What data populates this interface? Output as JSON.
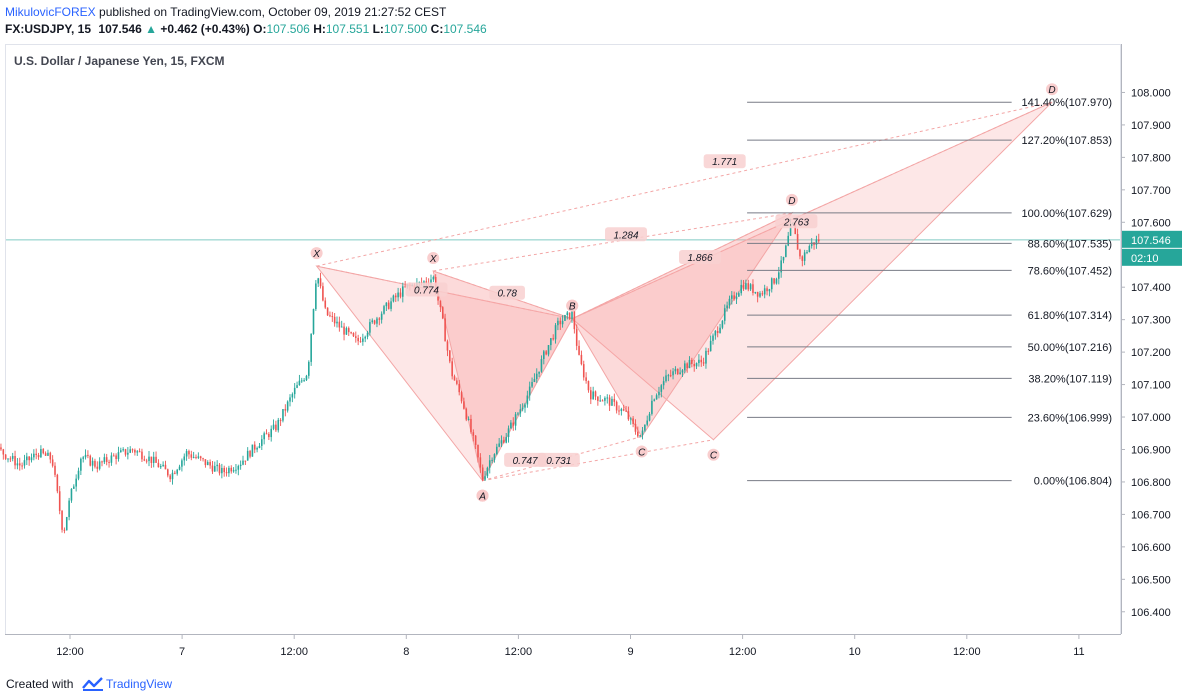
{
  "header": {
    "author": "MikulovicFOREX",
    "published_text": "published on TradingView.com, October 09, 2019 21:27:52 CEST",
    "symbol": "FX:USDJPY, 15",
    "last": "107.546",
    "change": "+0.462 (+0.43%)",
    "o_label": "O:",
    "o_value": "107.506",
    "h_label": "H:",
    "h_value": "107.551",
    "l_label": "L:",
    "l_value": "107.500",
    "c_label": "C:",
    "c_value": "107.546"
  },
  "footer": {
    "created_with": "Created with",
    "brand": "TradingView"
  },
  "colors": {
    "up": "#26a69a",
    "down": "#ef5350",
    "pattern_fill": "#f7a8a8",
    "fib_line": "#787b86",
    "current_price_bg": "#26a69a",
    "accent": "#2962ff"
  },
  "chart_data": {
    "type": "candlestick",
    "title": "U.S. Dollar / Japanese Yen, 15, FXCM",
    "y_range": [
      106.35,
      108.1
    ],
    "y_ticks": [
      "108.000",
      "107.900",
      "107.800",
      "107.700",
      "107.600",
      "107.500",
      "107.400",
      "107.300",
      "107.200",
      "107.100",
      "107.000",
      "106.900",
      "106.800",
      "106.700",
      "106.600",
      "106.500",
      "106.400"
    ],
    "x_ticks": [
      {
        "label": "12:00",
        "t": 0.5
      },
      {
        "label": "7",
        "t": 1.0
      },
      {
        "label": "12:00",
        "t": 1.5
      },
      {
        "label": "8",
        "t": 2.0
      },
      {
        "label": "12:00",
        "t": 2.5
      },
      {
        "label": "9",
        "t": 3.0
      },
      {
        "label": "12:00",
        "t": 3.5
      },
      {
        "label": "10",
        "t": 4.0
      },
      {
        "label": "12:00",
        "t": 4.5
      },
      {
        "label": "11",
        "t": 5.0
      }
    ],
    "x_range": [
      -0.32,
      5.15
    ],
    "price_path": [
      [
        -0.32,
        106.78
      ],
      [
        -0.22,
        106.83
      ],
      [
        -0.1,
        106.75
      ],
      [
        0.02,
        106.74
      ],
      [
        0.08,
        106.66
      ],
      [
        0.1,
        106.78
      ],
      [
        0.11,
        107.09
      ],
      [
        0.14,
        107.03
      ],
      [
        0.18,
        106.9
      ],
      [
        0.28,
        106.85
      ],
      [
        0.36,
        106.89
      ],
      [
        0.42,
        106.87
      ],
      [
        0.47,
        106.64
      ],
      [
        0.5,
        106.75
      ],
      [
        0.55,
        106.88
      ],
      [
        0.62,
        106.85
      ],
      [
        0.7,
        106.88
      ],
      [
        0.78,
        106.9
      ],
      [
        0.86,
        106.87
      ],
      [
        0.95,
        106.82
      ],
      [
        1.02,
        106.89
      ],
      [
        1.1,
        106.86
      ],
      [
        1.18,
        106.83
      ],
      [
        1.26,
        106.86
      ],
      [
        1.34,
        106.92
      ],
      [
        1.42,
        106.97
      ],
      [
        1.5,
        107.08
      ],
      [
        1.56,
        107.14
      ],
      [
        1.6,
        107.45
      ],
      [
        1.64,
        107.32
      ],
      [
        1.7,
        107.28
      ],
      [
        1.78,
        107.23
      ],
      [
        1.86,
        107.3
      ],
      [
        1.94,
        107.36
      ],
      [
        2.0,
        107.4
      ],
      [
        2.06,
        107.41
      ],
      [
        2.12,
        107.43
      ],
      [
        2.16,
        107.3
      ],
      [
        2.2,
        107.14
      ],
      [
        2.25,
        107.05
      ],
      [
        2.31,
        106.9
      ],
      [
        2.34,
        106.81
      ],
      [
        2.38,
        106.88
      ],
      [
        2.45,
        106.95
      ],
      [
        2.55,
        107.08
      ],
      [
        2.62,
        107.2
      ],
      [
        2.68,
        107.29
      ],
      [
        2.74,
        107.32
      ],
      [
        2.77,
        107.18
      ],
      [
        2.82,
        107.07
      ],
      [
        2.9,
        107.05
      ],
      [
        2.98,
        107.01
      ],
      [
        3.02,
        106.96
      ],
      [
        3.05,
        106.94
      ],
      [
        3.1,
        107.06
      ],
      [
        3.16,
        107.12
      ],
      [
        3.24,
        107.16
      ],
      [
        3.32,
        107.17
      ],
      [
        3.38,
        107.26
      ],
      [
        3.44,
        107.35
      ],
      [
        3.5,
        107.41
      ],
      [
        3.58,
        107.38
      ],
      [
        3.64,
        107.42
      ],
      [
        3.68,
        107.48
      ],
      [
        3.72,
        107.6
      ],
      [
        3.76,
        107.48
      ],
      [
        3.8,
        107.53
      ],
      [
        3.84,
        107.546
      ]
    ],
    "price_noise_amplitude": 0.03,
    "patterns": [
      {
        "points": [
          {
            "t": 1.6,
            "p": 107.465,
            "label": "X"
          },
          {
            "t": 2.34,
            "p": 106.804,
            "label": "A"
          },
          {
            "t": 2.74,
            "p": 107.303,
            "label": "B"
          },
          {
            "t": 3.37,
            "p": 106.93,
            "label": "C"
          },
          {
            "t": 4.88,
            "p": 107.97,
            "label": "D"
          }
        ],
        "ratios": [
          {
            "text": "0.747",
            "at": [
              2.53,
              106.865
            ]
          },
          {
            "text": "1.771",
            "at": [
              3.42,
              107.785
            ]
          },
          {
            "t_dummy": 0
          }
        ]
      },
      {
        "points": [
          {
            "t": 2.12,
            "p": 107.45,
            "label": "X"
          },
          {
            "t": 2.34,
            "p": 106.804,
            "label": "A"
          },
          {
            "t": 2.74,
            "p": 107.303,
            "label": "B"
          },
          {
            "t": 3.05,
            "p": 106.94,
            "label": "C"
          },
          {
            "t": 3.72,
            "p": 107.629,
            "label": "D"
          }
        ],
        "ratios": [
          {
            "text": "0.774",
            "at": [
              2.09,
              107.39
            ]
          },
          {
            "text": "0.78",
            "at": [
              2.45,
              107.38
            ]
          },
          {
            "text": "0.731",
            "at": [
              2.68,
              106.865
            ]
          },
          {
            "text": "1.284",
            "at": [
              2.98,
              107.56
            ]
          },
          {
            "text": "1.866",
            "at": [
              3.31,
              107.49
            ]
          },
          {
            "text": "2.763",
            "at": [
              3.74,
              107.6
            ]
          }
        ]
      }
    ],
    "fib": {
      "t_start": 3.52,
      "t_end": 4.7,
      "levels": [
        {
          "label": "141.40%(107.970)",
          "price": 107.97
        },
        {
          "label": "127.20%(107.853)",
          "price": 107.853
        },
        {
          "label": "100.00%(107.629)",
          "price": 107.629
        },
        {
          "label": "88.60%(107.535)",
          "price": 107.535
        },
        {
          "label": "78.60%(107.452)",
          "price": 107.452
        },
        {
          "label": "61.80%(107.314)",
          "price": 107.314
        },
        {
          "label": "50.00%(107.216)",
          "price": 107.216
        },
        {
          "label": "38.20%(107.119)",
          "price": 107.119
        },
        {
          "label": "23.60%(106.999)",
          "price": 106.999
        },
        {
          "label": "0.00%(106.804)",
          "price": 106.804
        }
      ]
    },
    "current_price": {
      "value": "107.546",
      "price": 107.546,
      "countdown": "02:10"
    }
  }
}
